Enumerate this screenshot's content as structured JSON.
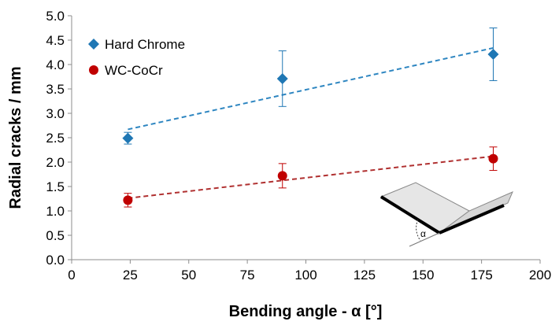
{
  "chart_data": {
    "type": "scatter",
    "xlabel": "Bending angle - α [°]",
    "ylabel": "Radial cracks / mm",
    "xlim": [
      0,
      200
    ],
    "ylim": [
      0,
      5
    ],
    "xticks": [
      0,
      25,
      50,
      75,
      100,
      125,
      150,
      175,
      200
    ],
    "xtick_labels": [
      "0",
      "25",
      "50",
      "75",
      "100",
      "125",
      "150",
      "175",
      "200"
    ],
    "yticks": [
      0,
      0.5,
      1,
      1.5,
      2,
      2.5,
      3,
      3.5,
      4,
      4.5,
      5
    ],
    "ytick_labels": [
      "0.0",
      "0.5",
      "1.0",
      "1.5",
      "2.0",
      "2.5",
      "3.0",
      "3.5",
      "4.0",
      "4.5",
      "5.0"
    ],
    "grid": false,
    "legend_position": "top-left",
    "series": [
      {
        "name": "Hard Chrome",
        "marker": "diamond",
        "color": "#1f77b4",
        "trend_color": "#2e86c1",
        "x": [
          24,
          90,
          180
        ],
        "y": [
          2.49,
          3.71,
          4.21
        ],
        "error": [
          0.12,
          0.57,
          0.54
        ],
        "trendline": [
          [
            24,
            2.67
          ],
          [
            180,
            4.34
          ]
        ]
      },
      {
        "name": "WC-CoCr",
        "marker": "circle",
        "color": "#c00000",
        "trend_color": "#b03030",
        "x": [
          24,
          90,
          180
        ],
        "y": [
          1.22,
          1.72,
          2.07
        ],
        "error": [
          0.14,
          0.25,
          0.24
        ],
        "trendline": [
          [
            24,
            1.26
          ],
          [
            180,
            2.12
          ]
        ]
      }
    ],
    "inset": {
      "label": "α"
    }
  }
}
